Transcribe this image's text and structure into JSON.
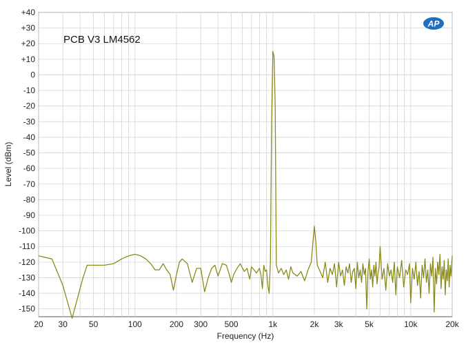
{
  "chart_data": {
    "type": "line",
    "title": "PCB V3  LM4562",
    "xlabel": "Frequency (Hz)",
    "ylabel": "Level (dBm)",
    "x_scale": "log",
    "xlim": [
      20,
      20000
    ],
    "ylim": [
      -155,
      40
    ],
    "grid": true,
    "x_ticks": [
      {
        "value": 20,
        "label": "20"
      },
      {
        "value": 30,
        "label": "30"
      },
      {
        "value": 50,
        "label": "50"
      },
      {
        "value": 100,
        "label": "100"
      },
      {
        "value": 200,
        "label": "200"
      },
      {
        "value": 300,
        "label": "300"
      },
      {
        "value": 500,
        "label": "500"
      },
      {
        "value": 1000,
        "label": "1k"
      },
      {
        "value": 2000,
        "label": "2k"
      },
      {
        "value": 3000,
        "label": "3k"
      },
      {
        "value": 5000,
        "label": "5k"
      },
      {
        "value": 10000,
        "label": "10k"
      },
      {
        "value": 20000,
        "label": "20k"
      }
    ],
    "y_ticks": [
      {
        "value": 40,
        "label": "+40"
      },
      {
        "value": 30,
        "label": "+30"
      },
      {
        "value": 20,
        "label": "+20"
      },
      {
        "value": 10,
        "label": "+10"
      },
      {
        "value": 0,
        "label": "0"
      },
      {
        "value": -10,
        "label": "-10"
      },
      {
        "value": -20,
        "label": "-20"
      },
      {
        "value": -30,
        "label": "-30"
      },
      {
        "value": -40,
        "label": "-40"
      },
      {
        "value": -50,
        "label": "-50"
      },
      {
        "value": -60,
        "label": "-60"
      },
      {
        "value": -70,
        "label": "-70"
      },
      {
        "value": -80,
        "label": "-80"
      },
      {
        "value": -90,
        "label": "-90"
      },
      {
        "value": -100,
        "label": "-100"
      },
      {
        "value": -110,
        "label": "-110"
      },
      {
        "value": -120,
        "label": "-120"
      },
      {
        "value": -130,
        "label": "-130"
      },
      {
        "value": -140,
        "label": "-140"
      },
      {
        "value": -150,
        "label": "-150"
      }
    ],
    "series": [
      {
        "color": "#8a8a1a",
        "points": [
          [
            20,
            -116
          ],
          [
            25,
            -118
          ],
          [
            30,
            -135
          ],
          [
            33,
            -148
          ],
          [
            35,
            -156
          ],
          [
            37,
            -148
          ],
          [
            42,
            -130
          ],
          [
            45,
            -122
          ],
          [
            50,
            -122
          ],
          [
            60,
            -122
          ],
          [
            70,
            -121
          ],
          [
            80,
            -118
          ],
          [
            90,
            -116
          ],
          [
            100,
            -115
          ],
          [
            110,
            -116
          ],
          [
            120,
            -118
          ],
          [
            130,
            -121
          ],
          [
            140,
            -125
          ],
          [
            150,
            -125
          ],
          [
            160,
            -121
          ],
          [
            170,
            -125
          ],
          [
            180,
            -128
          ],
          [
            190,
            -138
          ],
          [
            200,
            -128
          ],
          [
            210,
            -120
          ],
          [
            220,
            -118
          ],
          [
            240,
            -121
          ],
          [
            260,
            -133
          ],
          [
            280,
            -124
          ],
          [
            300,
            -124
          ],
          [
            320,
            -139
          ],
          [
            340,
            -130
          ],
          [
            360,
            -124
          ],
          [
            380,
            -122
          ],
          [
            400,
            -129
          ],
          [
            430,
            -121
          ],
          [
            460,
            -122
          ],
          [
            480,
            -127
          ],
          [
            500,
            -133
          ],
          [
            520,
            -128
          ],
          [
            550,
            -124
          ],
          [
            580,
            -121
          ],
          [
            620,
            -126
          ],
          [
            650,
            -124
          ],
          [
            680,
            -131
          ],
          [
            700,
            -123
          ],
          [
            730,
            -125
          ],
          [
            760,
            -127
          ],
          [
            800,
            -124
          ],
          [
            820,
            -128
          ],
          [
            840,
            -137
          ],
          [
            860,
            -122
          ],
          [
            880,
            -126
          ],
          [
            900,
            -125
          ],
          [
            920,
            -135
          ],
          [
            940,
            -140
          ],
          [
            960,
            -120
          ],
          [
            980,
            -30
          ],
          [
            1000,
            15
          ],
          [
            1020,
            12
          ],
          [
            1040,
            -20
          ],
          [
            1060,
            -122
          ],
          [
            1100,
            -127
          ],
          [
            1150,
            -124
          ],
          [
            1200,
            -128
          ],
          [
            1250,
            -125
          ],
          [
            1300,
            -131
          ],
          [
            1350,
            -123
          ],
          [
            1400,
            -127
          ],
          [
            1500,
            -129
          ],
          [
            1600,
            -126
          ],
          [
            1700,
            -132
          ],
          [
            1800,
            -125
          ],
          [
            1900,
            -120
          ],
          [
            1950,
            -108
          ],
          [
            2000,
            -97
          ],
          [
            2050,
            -107
          ],
          [
            2100,
            -122
          ],
          [
            2200,
            -126
          ],
          [
            2300,
            -130
          ],
          [
            2400,
            -120
          ],
          [
            2500,
            -133
          ],
          [
            2600,
            -124
          ],
          [
            2700,
            -128
          ],
          [
            2800,
            -121
          ],
          [
            2900,
            -136
          ],
          [
            3000,
            -120
          ],
          [
            3100,
            -129
          ],
          [
            3200,
            -125
          ],
          [
            3300,
            -135
          ],
          [
            3400,
            -123
          ],
          [
            3500,
            -127
          ],
          [
            3600,
            -121
          ],
          [
            3700,
            -133
          ],
          [
            3800,
            -126
          ],
          [
            3900,
            -124
          ],
          [
            4000,
            -137
          ],
          [
            4100,
            -120
          ],
          [
            4200,
            -130
          ],
          [
            4300,
            -125
          ],
          [
            4400,
            -133
          ],
          [
            4500,
            -121
          ],
          [
            4600,
            -128
          ],
          [
            4700,
            -124
          ],
          [
            4800,
            -150
          ],
          [
            4900,
            -126
          ],
          [
            5000,
            -118
          ],
          [
            5100,
            -131
          ],
          [
            5200,
            -125
          ],
          [
            5300,
            -136
          ],
          [
            5400,
            -122
          ],
          [
            5500,
            -129
          ],
          [
            5600,
            -120
          ],
          [
            5700,
            -134
          ],
          [
            5800,
            -127
          ],
          [
            5900,
            -123
          ],
          [
            6000,
            -110
          ],
          [
            6200,
            -131
          ],
          [
            6400,
            -124
          ],
          [
            6600,
            -138
          ],
          [
            6800,
            -121
          ],
          [
            7000,
            -129
          ],
          [
            7200,
            -125
          ],
          [
            7400,
            -133
          ],
          [
            7600,
            -120
          ],
          [
            7800,
            -141
          ],
          [
            8000,
            -123
          ],
          [
            8300,
            -130
          ],
          [
            8600,
            -119
          ],
          [
            8900,
            -136
          ],
          [
            9200,
            -125
          ],
          [
            9500,
            -128
          ],
          [
            9800,
            -121
          ],
          [
            10000,
            -146
          ],
          [
            10300,
            -124
          ],
          [
            10600,
            -131
          ],
          [
            10900,
            -120
          ],
          [
            11200,
            -135
          ],
          [
            11500,
            -126
          ],
          [
            11800,
            -143
          ],
          [
            12100,
            -122
          ],
          [
            12400,
            -130
          ],
          [
            12700,
            -118
          ],
          [
            13000,
            -133
          ],
          [
            13300,
            -125
          ],
          [
            13600,
            -140
          ],
          [
            13900,
            -121
          ],
          [
            14200,
            -129
          ],
          [
            14500,
            -117
          ],
          [
            14800,
            -152
          ],
          [
            15100,
            -124
          ],
          [
            15400,
            -134
          ],
          [
            15700,
            -120
          ],
          [
            16000,
            -128
          ],
          [
            16300,
            -115
          ],
          [
            16600,
            -137
          ],
          [
            16900,
            -123
          ],
          [
            17200,
            -131
          ],
          [
            17500,
            -119
          ],
          [
            17800,
            -141
          ],
          [
            18100,
            -125
          ],
          [
            18400,
            -132
          ],
          [
            18700,
            -118
          ],
          [
            19000,
            -136
          ],
          [
            19300,
            -122
          ],
          [
            19600,
            -129
          ],
          [
            20000,
            -116
          ]
        ]
      }
    ]
  },
  "logo": {
    "text": "AP",
    "color": "#1f6fbf"
  }
}
